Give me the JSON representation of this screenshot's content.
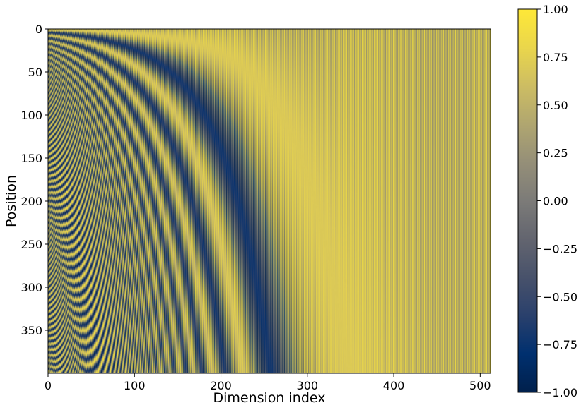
{
  "chart_data": {
    "type": "heatmap",
    "title": "",
    "xlabel": "Dimension index",
    "ylabel": "Position",
    "x_range": [
      0,
      512
    ],
    "y_range": [
      0,
      400
    ],
    "y_inverted": true,
    "x_ticks": [
      "0",
      "100",
      "200",
      "300",
      "400",
      "500"
    ],
    "y_ticks": [
      "0",
      "50",
      "100",
      "150",
      "200",
      "250",
      "300",
      "350"
    ],
    "x_tick_values": [
      0,
      100,
      200,
      300,
      400,
      500
    ],
    "y_tick_values": [
      0,
      50,
      100,
      150,
      200,
      250,
      300,
      350
    ],
    "colorbar": {
      "min": -1.0,
      "max": 1.0,
      "ticks": [
        "1.00",
        "0.75",
        "0.50",
        "0.25",
        "0.00",
        "−0.25",
        "−0.50",
        "−0.75",
        "−1.00"
      ],
      "tick_values": [
        1.0,
        0.75,
        0.5,
        0.25,
        0.0,
        -0.25,
        -0.5,
        -0.75,
        -1.0
      ],
      "colormap": "cividis",
      "colormap_stops": [
        "#00204c",
        "#00306f",
        "#2a406c",
        "#48526b",
        "#63656f",
        "#7c7b78",
        "#958f78",
        "#b0a670",
        "#cdbd63",
        "#ead64c",
        "#fee838"
      ]
    },
    "function": "sinusoidal positional encoding: even dims sin(pos / 10000^(i/512)), odd dims cos(pos / 10000^((i-1)/512))",
    "positions": 400,
    "dimensions": 512,
    "grid": false
  }
}
